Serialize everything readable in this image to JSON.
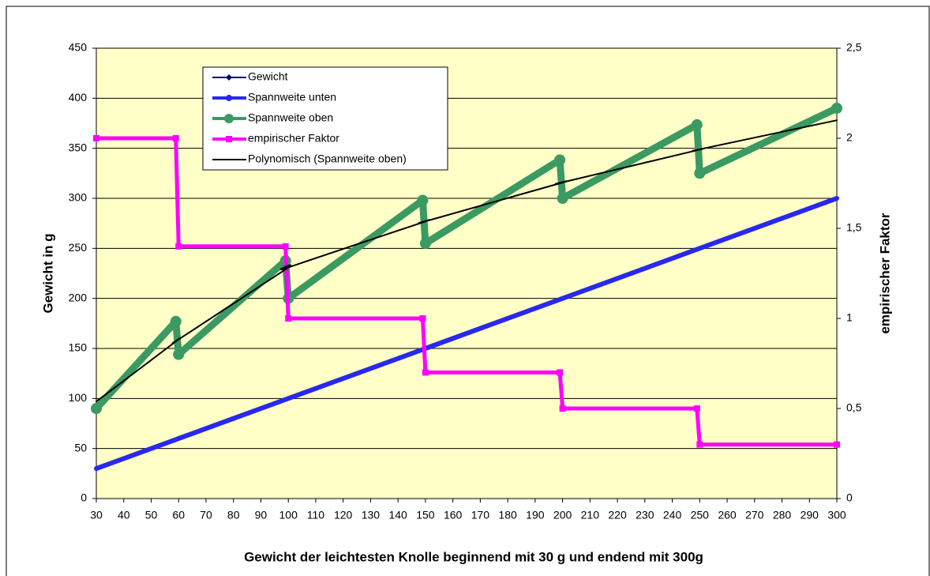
{
  "chart_data": {
    "type": "line",
    "x_label": "Gewicht der leichtesten Knolle beginnend mit 30 g und endend mit 300g",
    "y_label": "Gewicht in g",
    "y2_label": "empirischer Faktor",
    "x": [
      30,
      59,
      60,
      99,
      100,
      149,
      150,
      199,
      200,
      249,
      250,
      300
    ],
    "series": [
      {
        "name": "Gewicht",
        "color": "#000080",
        "marker": "diamond",
        "values": [
          30,
          59,
          60,
          99,
          100,
          149,
          150,
          199,
          200,
          249,
          250,
          300
        ]
      },
      {
        "name": "Spannweite unten",
        "color": "#2828f0",
        "marker": "circle",
        "values": [
          30,
          59,
          60,
          99,
          100,
          149,
          150,
          199,
          200,
          249,
          250,
          300
        ]
      },
      {
        "name": "Spannweite oben",
        "color": "#3a9a62",
        "marker": "circle",
        "values": [
          90,
          177,
          144,
          237.6,
          200,
          298,
          255,
          338.3,
          300,
          373.5,
          325,
          390
        ]
      },
      {
        "name": "empirischer Faktor",
        "color": "#ff00ff",
        "marker": "square",
        "axis": "y2",
        "values": [
          2,
          2,
          1.4,
          1.4,
          1,
          1,
          0.7,
          0.7,
          0.5,
          0.5,
          0.3,
          0.3
        ]
      },
      {
        "name": "Polynomisch (Spannweite oben)",
        "color": "#000000",
        "marker": "none",
        "values": [
          97,
          157,
          159,
          229,
          231,
          276,
          277,
          315,
          316,
          348,
          349,
          378
        ]
      }
    ],
    "xlim": [
      30,
      300
    ],
    "xticks": [
      30,
      40,
      50,
      60,
      70,
      80,
      90,
      100,
      110,
      120,
      130,
      140,
      150,
      160,
      170,
      180,
      190,
      200,
      210,
      220,
      230,
      240,
      250,
      260,
      270,
      280,
      290,
      300
    ],
    "ylim": [
      0,
      450
    ],
    "yticks": [
      0,
      50,
      100,
      150,
      200,
      250,
      300,
      350,
      400,
      450
    ],
    "y2lim": [
      0,
      2.5
    ],
    "y2ticks": [
      0,
      {
        "value": 0.5,
        "label": "0,5"
      },
      1,
      {
        "value": 1.5,
        "label": "1,5"
      },
      2,
      {
        "value": 2.5,
        "label": "2,5"
      }
    ],
    "grid": true,
    "legend": "upper left"
  }
}
